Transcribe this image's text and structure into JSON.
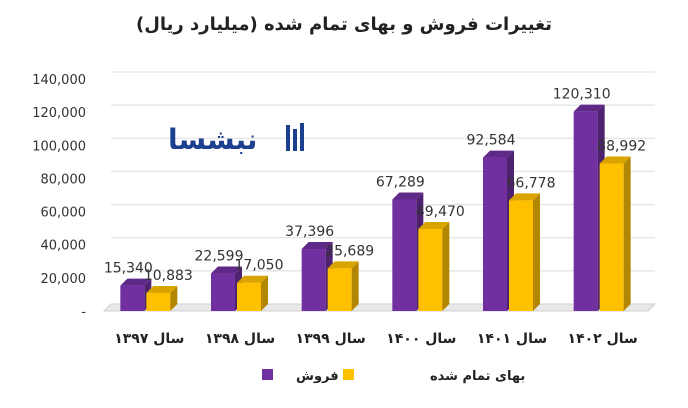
{
  "chart_data": {
    "type": "bar",
    "title": "تغییرات فروش و بهای تمام شده (میلیارد ریال)",
    "categories": [
      "سال ۱۳۹۷",
      "سال ۱۳۹۸",
      "سال ۱۳۹۹",
      "سال ۱۴۰۰",
      "سال ۱۴۰۱",
      "سال ۱۴۰۲"
    ],
    "series": [
      {
        "name": "فروش",
        "color": "#7030A0",
        "values": [
          15340,
          22599,
          37396,
          67289,
          92584,
          120310
        ],
        "labels": [
          "15,340",
          "22,599",
          "37,396",
          "67,289",
          "92,584",
          "120,310"
        ]
      },
      {
        "name": "بهای تمام شده",
        "color": "#FFC000",
        "values": [
          10883,
          17050,
          25689,
          49470,
          66778,
          88992
        ],
        "labels": [
          "10,883",
          "17,050",
          "25,689",
          "49,470",
          "66,778",
          "88,992"
        ]
      }
    ],
    "yticks": [
      "-",
      "20,000",
      "40,000",
      "60,000",
      "80,000",
      "100,000",
      "120,000",
      "140,000"
    ],
    "ylim": [
      0,
      140000
    ],
    "grid": true,
    "legend_position": "bottom",
    "xlabel": "",
    "ylabel": ""
  },
  "watermark": {
    "text": "نبشسا"
  }
}
